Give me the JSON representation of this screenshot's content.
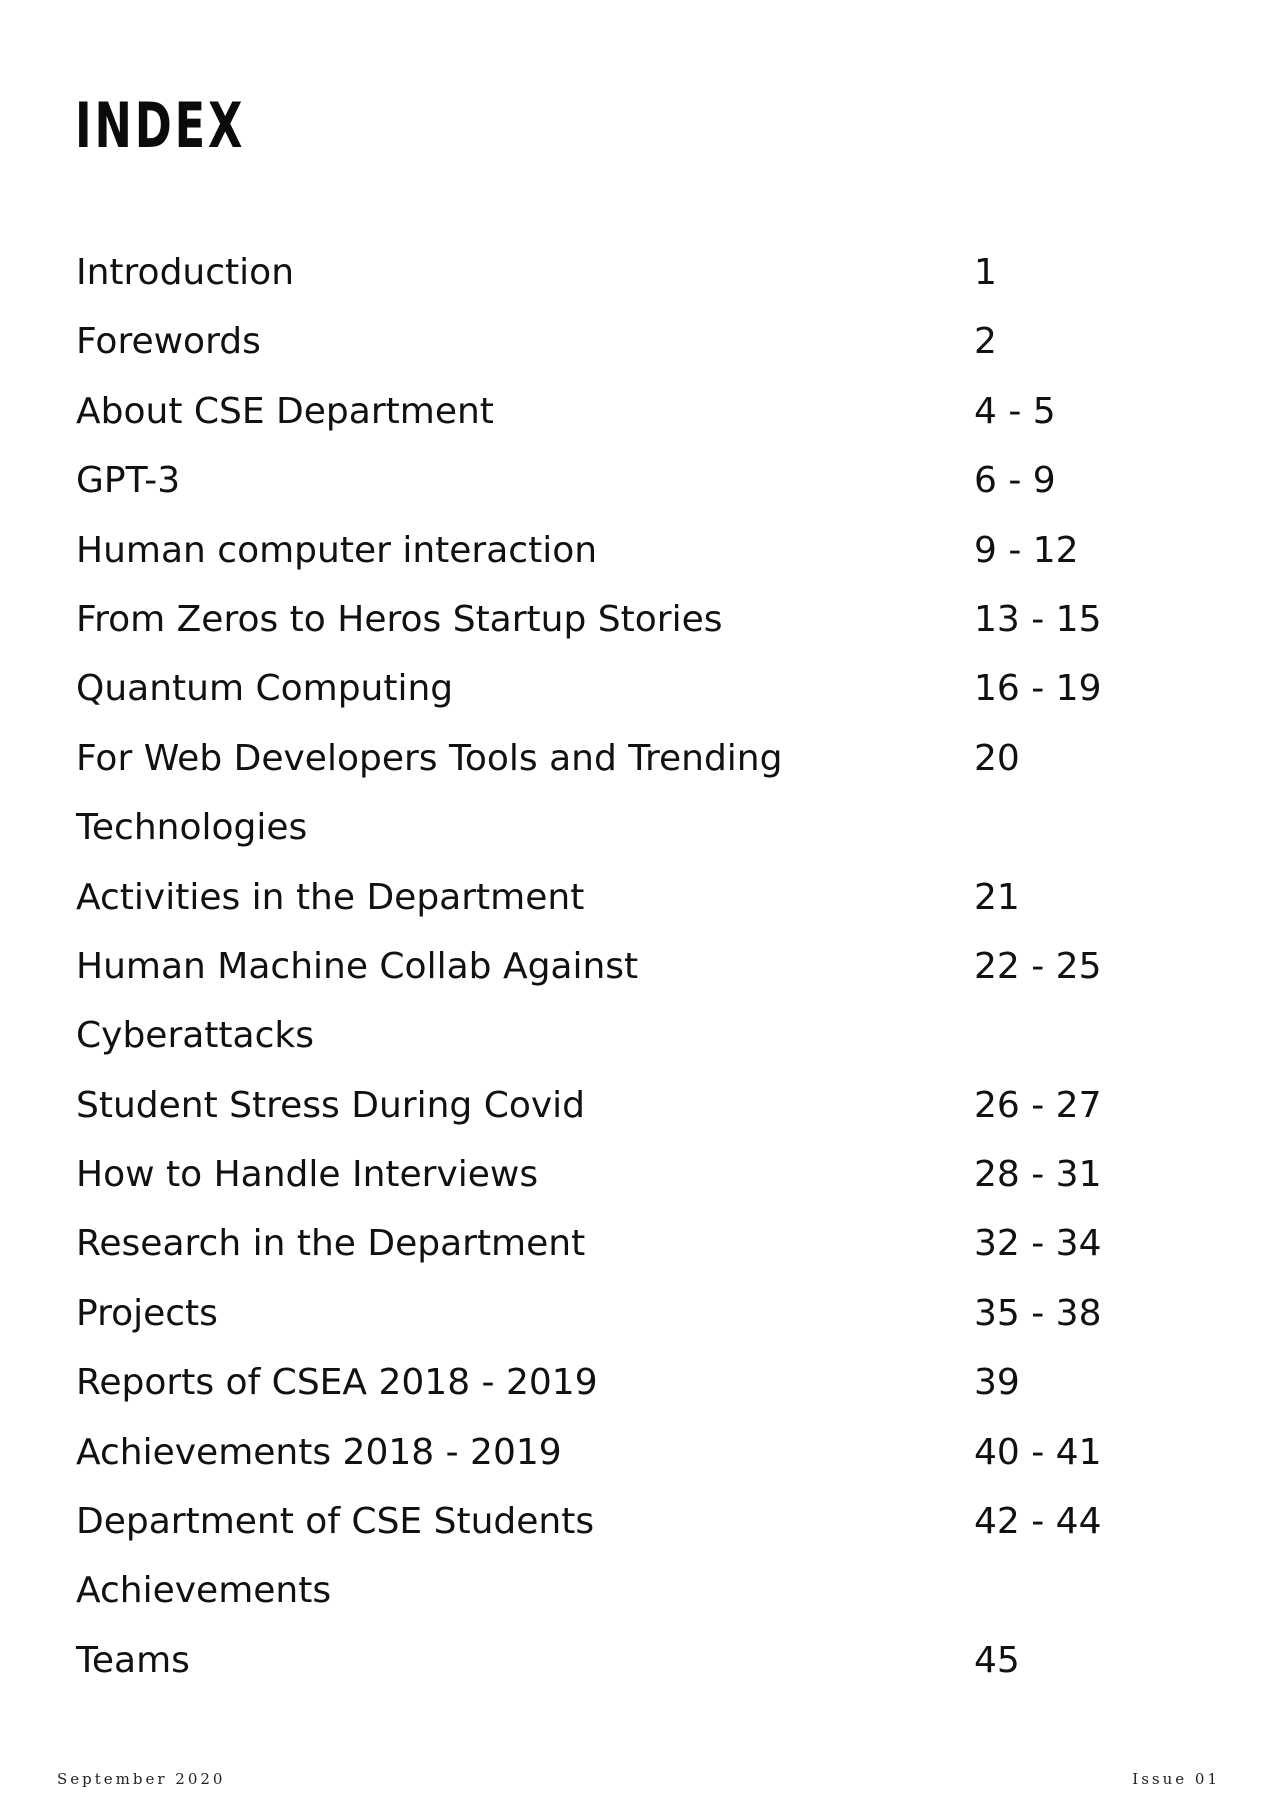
{
  "title": "INDEX",
  "entries": [
    {
      "title": "Introduction",
      "pages": "1"
    },
    {
      "title": "Forewords",
      "pages": "2"
    },
    {
      "title": "About CSE Department",
      "pages": "4 - 5"
    },
    {
      "title": "GPT-3",
      "pages": "6 - 9"
    },
    {
      "title": "Human computer interaction",
      "pages": "9 - 12"
    },
    {
      "title": "From Zeros to Heros  Startup Stories",
      "pages": "13 - 15"
    },
    {
      "title": "Quantum Computing",
      "pages": "16 - 19"
    },
    {
      "title": "For Web Developers Tools and Trending",
      "pages": "20"
    },
    {
      "title": "Technologies",
      "pages": ""
    },
    {
      "title": "Activities in the Department",
      "pages": "21"
    },
    {
      "title": "Human Machine Collab Against",
      "pages": "22 - 25"
    },
    {
      "title": "Cyberattacks",
      "pages": ""
    },
    {
      "title": "Student Stress During Covid",
      "pages": "26 - 27"
    },
    {
      "title": "How to Handle Interviews",
      "pages": "28 - 31"
    },
    {
      "title": "Research in the Department",
      "pages": "32 - 34"
    },
    {
      "title": "Projects",
      "pages": "35 - 38"
    },
    {
      "title": "Reports of CSEA 2018 - 2019",
      "pages": "39"
    },
    {
      "title": "Achievements 2018 - 2019",
      "pages": "40 - 41"
    },
    {
      "title": "Department of CSE Students",
      "pages": "42 - 44"
    },
    {
      "title": "Achievements",
      "pages": ""
    },
    {
      "title": "Teams",
      "pages": "45"
    }
  ],
  "footer": {
    "left": "September 2020",
    "right": "Issue 01"
  }
}
